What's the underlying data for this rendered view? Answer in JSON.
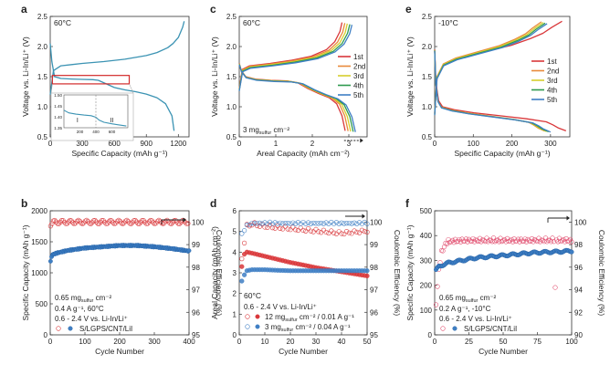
{
  "colors": {
    "red": "#d9373a",
    "orange": "#e98a3b",
    "yellow": "#d6cf2d",
    "green": "#2e9a4e",
    "blue": "#3f7fc4",
    "navy": "#1f2f7a",
    "teal": "#3b93b3",
    "magenta": "#e14e6f",
    "inset_box": "#d22a2a"
  },
  "chart_data": [
    {
      "id": "a",
      "type": "line",
      "panel_label": "a",
      "temperature": "60°C",
      "xlabel": "Specific Capacity (mAh g⁻¹)",
      "ylabel": "Voltage vs. Li-In/Li⁺ (V)",
      "xlim": [
        0,
        1300
      ],
      "ylim": [
        0.5,
        2.5
      ],
      "xticks": [
        0,
        300,
        600,
        900,
        1200
      ],
      "yticks": [
        0.5,
        1.0,
        1.5,
        2.0,
        2.5
      ],
      "series": [
        {
          "name": "discharge",
          "color": "#3b93b3",
          "x": [
            0,
            15,
            40,
            100,
            200,
            300,
            400,
            450,
            500,
            600,
            700,
            800,
            900,
            1000,
            1080,
            1140,
            1160
          ],
          "y": [
            2.05,
            1.75,
            1.5,
            1.47,
            1.46,
            1.455,
            1.45,
            1.44,
            1.4,
            1.32,
            1.28,
            1.25,
            1.21,
            1.15,
            1.05,
            0.85,
            0.6
          ]
        },
        {
          "name": "charge",
          "color": "#3b93b3",
          "x": [
            0,
            30,
            100,
            200,
            300,
            500,
            700,
            900,
            1000,
            1100,
            1150,
            1200,
            1240,
            1255
          ],
          "y": [
            1.2,
            1.6,
            1.68,
            1.7,
            1.72,
            1.75,
            1.79,
            1.85,
            1.9,
            1.98,
            2.05,
            2.15,
            2.32,
            2.42
          ]
        }
      ],
      "inset": {
        "xlim": [
          0,
          800
        ],
        "ylim": [
          1.35,
          1.5
        ],
        "xticks": [
          200,
          400,
          600
        ],
        "yticks": [
          1.35,
          1.4,
          1.45,
          1.5
        ],
        "region_labels": [
          "I",
          "II"
        ],
        "series": {
          "x": [
            0,
            60,
            150,
            250,
            340,
            400,
            440,
            500,
            600,
            700,
            780
          ],
          "y": [
            1.43,
            1.418,
            1.412,
            1.408,
            1.405,
            1.398,
            1.385,
            1.375,
            1.368,
            1.362,
            1.358
          ]
        },
        "divider_x": 400
      }
    },
    {
      "id": "c",
      "type": "line",
      "panel_label": "c",
      "temperature": "60°C",
      "xlabel": "Areal Capacity (mAh cm⁻²)",
      "ylabel": "Voltage vs. Li-In/Li⁺ (V)",
      "xlim": [
        0,
        3.5
      ],
      "ylim": [
        0.5,
        2.5
      ],
      "xticks": [
        0,
        1,
        2,
        3
      ],
      "yticks": [
        0.5,
        1.0,
        1.5,
        2.0,
        2.5
      ],
      "loading_annotation": "3 mg",
      "loading_subscript": "sulfur",
      "loading_unit": " cm⁻²",
      "series": [
        {
          "name": "1st",
          "color": "#d9373a",
          "end_x": 2.9
        },
        {
          "name": "2nd",
          "color": "#e98a3b",
          "end_x": 2.98
        },
        {
          "name": "3rd",
          "color": "#d6cf2d",
          "end_x": 3.05
        },
        {
          "name": "4th",
          "color": "#2e9a4e",
          "end_x": 3.12
        },
        {
          "name": "5th",
          "color": "#3f7fc4",
          "end_x": 3.18
        }
      ],
      "profile": {
        "discharge_frac": [
          0,
          0.02,
          0.06,
          0.15,
          0.3,
          0.45,
          0.55,
          0.65,
          0.75,
          0.85,
          0.92,
          0.97,
          1.0
        ],
        "discharge_v": [
          1.72,
          1.6,
          1.5,
          1.46,
          1.44,
          1.43,
          1.4,
          1.3,
          1.22,
          1.15,
          1.05,
          0.85,
          0.6
        ],
        "charge_frac": [
          0,
          0.03,
          0.1,
          0.3,
          0.5,
          0.7,
          0.85,
          0.93,
          0.98,
          1.0
        ],
        "charge_v": [
          1.3,
          1.62,
          1.68,
          1.72,
          1.77,
          1.84,
          1.95,
          2.08,
          2.25,
          2.4
        ]
      }
    },
    {
      "id": "e",
      "type": "line",
      "panel_label": "e",
      "temperature": "-10°C",
      "xlabel": "Specific Capacity (mAh g⁻¹)",
      "ylabel": "Voltage vs. Li-In/Li⁺ (V)",
      "xlim": [
        0,
        350
      ],
      "ylim": [
        0.5,
        2.5
      ],
      "xticks": [
        0,
        100,
        200,
        300
      ],
      "yticks": [
        0.5,
        1.0,
        1.5,
        2.0,
        2.5
      ],
      "series": [
        {
          "name": "1st",
          "color": "#d9373a",
          "end_x": 340
        },
        {
          "name": "2nd",
          "color": "#e98a3b",
          "end_x": 285
        },
        {
          "name": "3rd",
          "color": "#d6cf2d",
          "end_x": 290
        },
        {
          "name": "4th",
          "color": "#2e9a4e",
          "end_x": 295
        },
        {
          "name": "5th",
          "color": "#3f7fc4",
          "end_x": 300
        }
      ],
      "profile": {
        "discharge_frac": [
          0,
          0.01,
          0.03,
          0.06,
          0.15,
          0.3,
          0.5,
          0.7,
          0.85,
          0.9,
          0.94,
          1.0
        ],
        "discharge_v": [
          1.95,
          1.4,
          1.1,
          1.0,
          0.95,
          0.9,
          0.85,
          0.8,
          0.75,
          0.7,
          0.65,
          0.6
        ],
        "charge_frac": [
          0,
          0.02,
          0.08,
          0.2,
          0.4,
          0.6,
          0.75,
          0.85,
          0.92,
          1.0
        ],
        "charge_v": [
          0.9,
          1.5,
          1.72,
          1.82,
          1.92,
          2.02,
          2.13,
          2.22,
          2.32,
          2.42
        ]
      }
    },
    {
      "id": "b",
      "type": "scatter",
      "panel_label": "b",
      "xlabel": "Cycle Number",
      "ylabel": "Specific Capacity (mAh g⁻¹)",
      "y2label": "Coulombic Efficiency (%)",
      "xlim": [
        0,
        400
      ],
      "ylim": [
        0,
        2000
      ],
      "y2lim": [
        95,
        100.5
      ],
      "xticks": [
        0,
        100,
        200,
        300,
        400
      ],
      "yticks": [
        0,
        500,
        1000,
        1500,
        2000
      ],
      "y2ticks": [
        95,
        96,
        97,
        98,
        99,
        100
      ],
      "annotations": [
        "0.65 mg",
        "0.4 A g⁻¹, 60°C",
        "0.6 - 2.4 V vs. Li-In/Li⁺"
      ],
      "loading_subscript": "sulfur",
      "loading_unit": " cm⁻²",
      "legend": "S/LGPS/CNT/LiI",
      "capacity": {
        "x": [
          1,
          5,
          20,
          50,
          100,
          150,
          200,
          250,
          300,
          350,
          400
        ],
        "y": [
          1180,
          1290,
          1320,
          1360,
          1400,
          1420,
          1440,
          1440,
          1420,
          1390,
          1350
        ]
      },
      "efficiency": {
        "x": [
          1,
          10,
          50,
          100,
          200,
          300,
          400
        ],
        "y": [
          99.9,
          100.0,
          100.0,
          100.0,
          100.0,
          100.0,
          100.0
        ]
      }
    },
    {
      "id": "d",
      "type": "scatter",
      "panel_label": "d",
      "temperature": "60°C",
      "xlabel": "Cycle Number",
      "ylabel": "Areal Capacity (mAh cm⁻²)",
      "y2label": "Coulombic Efficiency (%)",
      "xlim": [
        0,
        50
      ],
      "ylim": [
        0,
        6
      ],
      "y2lim": [
        95,
        100.5
      ],
      "xticks": [
        0,
        10,
        20,
        30,
        40,
        50
      ],
      "yticks": [
        0,
        1,
        2,
        3,
        4,
        5,
        6
      ],
      "y2ticks": [
        95,
        96,
        97,
        98,
        99,
        100
      ],
      "annotations": [
        "0.6 - 2.4 V vs. Li-In/Li⁺"
      ],
      "series": [
        {
          "name": "12 mg",
          "name_sub": "sulfur",
          "name_rest": " cm⁻² / 0.01 A g⁻¹",
          "color": "#d9373a",
          "x": [
            1,
            2,
            3,
            5,
            10,
            15,
            20,
            25,
            30,
            35,
            40,
            45,
            50
          ],
          "y": [
            3.3,
            3.9,
            4.0,
            3.95,
            3.8,
            3.65,
            3.5,
            3.38,
            3.25,
            3.15,
            3.05,
            2.95,
            2.85
          ]
        },
        {
          "name": "3 mg",
          "name_sub": "sulfur",
          "name_rest": " cm⁻² / 0.04 A g⁻¹",
          "color": "#3f7fc4",
          "x": [
            1,
            2,
            3,
            5,
            10,
            15,
            20,
            25,
            30,
            35,
            40,
            45,
            50
          ],
          "y": [
            2.6,
            2.9,
            3.1,
            3.15,
            3.15,
            3.12,
            3.1,
            3.1,
            3.1,
            3.1,
            3.1,
            3.1,
            3.1
          ]
        }
      ],
      "efficiency_red": {
        "x": [
          1,
          3,
          5,
          10,
          20,
          30,
          40,
          50
        ],
        "y": [
          98.5,
          99.9,
          100.0,
          99.9,
          99.8,
          99.7,
          99.6,
          99.7
        ]
      },
      "efficiency_blue": {
        "x": [
          1,
          3,
          5,
          10,
          20,
          30,
          40,
          50
        ],
        "y": [
          99.5,
          99.9,
          100.0,
          100.0,
          100.0,
          100.0,
          100.0,
          100.0
        ]
      }
    },
    {
      "id": "f",
      "type": "scatter",
      "panel_label": "f",
      "xlabel": "Cycle Number",
      "ylabel": "Specific Capacity (mAh g⁻¹)",
      "y2label": "Coulombic Efficiency (%)",
      "xlim": [
        0,
        100
      ],
      "ylim": [
        0,
        500
      ],
      "y2lim": [
        90,
        101
      ],
      "xticks": [
        0,
        25,
        50,
        75,
        100
      ],
      "yticks": [
        0,
        100,
        200,
        300,
        400,
        500
      ],
      "y2ticks": [
        90,
        92,
        94,
        96,
        98,
        100
      ],
      "annotations": [
        "0.65 mg",
        "0.2 A g⁻¹, -10°C",
        "0.6 - 2.4 V vs. Li-In/Li⁺"
      ],
      "loading_subscript": "sulfur",
      "loading_unit": " cm⁻²",
      "legend": "S/LGPS/CNT/LiI",
      "capacity": {
        "x": [
          1,
          3,
          5,
          10,
          20,
          30,
          40,
          50,
          60,
          70,
          80,
          90,
          100
        ],
        "y": [
          260,
          275,
          280,
          290,
          300,
          310,
          315,
          320,
          325,
          330,
          333,
          335,
          338
        ]
      },
      "efficiency": {
        "x": [
          1,
          3,
          5,
          8,
          10,
          20,
          30,
          50,
          70,
          90,
          100
        ],
        "y": [
          93.0,
          96.0,
          97.5,
          98.3,
          98.5,
          98.6,
          98.6,
          98.6,
          98.6,
          98.6,
          98.6
        ]
      }
    }
  ]
}
